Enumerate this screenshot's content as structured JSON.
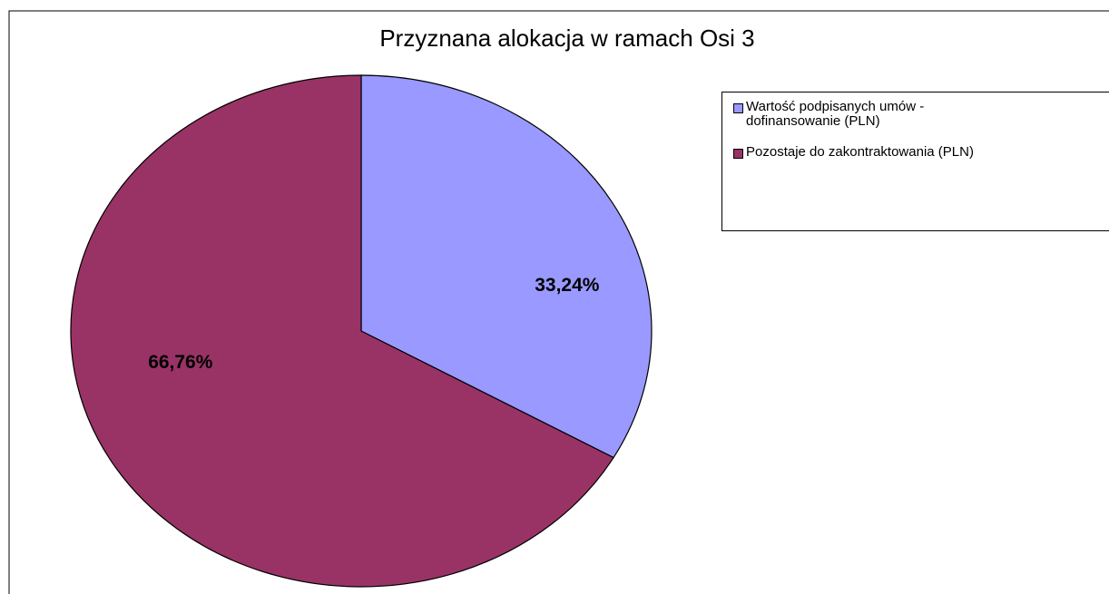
{
  "chart_data": {
    "type": "pie",
    "title": "Przyznana alokacja w ramach Osi 3",
    "categories": [
      "Wartość podpisanych umów - dofinansowanie (PLN)",
      "Pozostaje do zakontraktowania (PLN)"
    ],
    "values": [
      33.24,
      66.76
    ],
    "value_labels": [
      "33,24%",
      "66,76%"
    ],
    "colors": [
      "#9999ff",
      "#993366"
    ],
    "legend": "right"
  }
}
